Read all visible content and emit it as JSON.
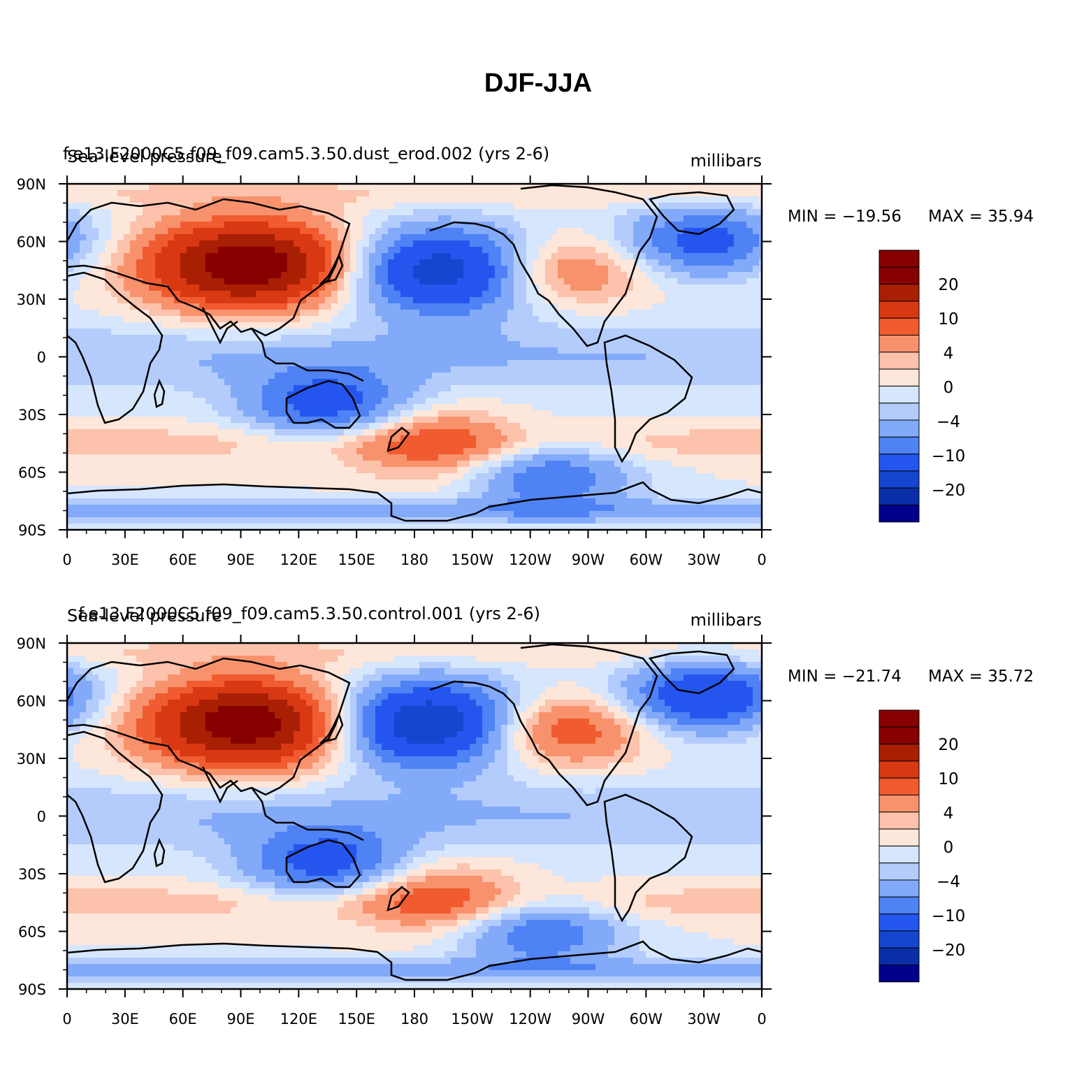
{
  "title": "DJF-JJA",
  "colors": {
    "levels": [
      "#00008b",
      "#0a2ea8",
      "#1646cf",
      "#2456ef",
      "#4e82f5",
      "#83aaf9",
      "#b3ccfb",
      "#d6e6fd",
      "#fde6da",
      "#fcc2ab",
      "#f8926c",
      "#f05b30",
      "#d83812",
      "#a81f04",
      "#860000"
    ],
    "coast": "#000000"
  },
  "colorbar_labels": [
    "20",
    "10",
    "4",
    "0",
    "−4",
    "−10",
    "−20"
  ],
  "lon_ticks": [
    "0",
    "30E",
    "60E",
    "90E",
    "120E",
    "150E",
    "180",
    "150W",
    "120W",
    "90W",
    "60W",
    "30W",
    "0"
  ],
  "lat_ticks": [
    "90N",
    "60N",
    "30N",
    "0",
    "30S",
    "60S",
    "90S"
  ],
  "panels": [
    {
      "left_label": "Sea-level pressure",
      "center_label": "f.e13.F2000C5.f09_f09.cam5.3.50.dust_erod.002 (yrs 2-6)",
      "right_label": "millibars",
      "min_text": "MIN = −19.56",
      "max_text": "MAX =   35.94"
    },
    {
      "left_label": "Sea-level pressure",
      "center_label": "f.e13.F2000C5.f09_f09.cam5.3.50.control.001 (yrs 2-6)",
      "right_label": "millibars",
      "min_text": "MIN = −21.74",
      "max_text": "MAX =   35.72"
    }
  ],
  "chart_data": {
    "type": "heatmap",
    "variable": "Sea-level pressure",
    "units": "millibars",
    "season_difference": "DJF-JJA",
    "colorbar_ticks": [
      20,
      10,
      4,
      0,
      -4,
      -10,
      -20
    ],
    "panels": [
      {
        "case": "f.e13.F2000C5.f09_f09.cam5.3.50.dust_erod.002 (yrs 2-6)",
        "min": -19.56,
        "max": 35.94,
        "lon_range": [
          0,
          360
        ],
        "lat_range": [
          -90,
          90
        ],
        "features": [
          {
            "region": "Siberia/Central Asia high",
            "lon": 95,
            "lat": 48,
            "value": 25
          },
          {
            "region": "Aleutian low",
            "lon": 195,
            "lat": 45,
            "value": -19
          },
          {
            "region": "Icelandic low",
            "lon": 330,
            "lat": 60,
            "value": -12
          },
          {
            "region": "North America high",
            "lon": 255,
            "lat": 45,
            "value": 10
          },
          {
            "region": "Australia low",
            "lon": 135,
            "lat": -25,
            "value": -12
          },
          {
            "region": "Southern Ocean high",
            "lon": 190,
            "lat": -45,
            "value": 8
          },
          {
            "region": "Amundsen low",
            "lon": 250,
            "lat": -62,
            "value": -10
          }
        ]
      },
      {
        "case": "f.e13.F2000C5.f09_f09.cam5.3.50.control.001 (yrs 2-6)",
        "min": -21.74,
        "max": 35.72,
        "lon_range": [
          0,
          360
        ],
        "lat_range": [
          -90,
          90
        ],
        "features": [
          {
            "region": "Siberia/Central Asia high",
            "lon": 95,
            "lat": 48,
            "value": 25
          },
          {
            "region": "Aleutian low",
            "lon": 185,
            "lat": 48,
            "value": -21
          },
          {
            "region": "Icelandic low",
            "lon": 330,
            "lat": 62,
            "value": -15
          },
          {
            "region": "North America high",
            "lon": 255,
            "lat": 45,
            "value": 12
          },
          {
            "region": "Australia low",
            "lon": 135,
            "lat": -25,
            "value": -12
          },
          {
            "region": "Southern Ocean high",
            "lon": 190,
            "lat": -42,
            "value": 8
          },
          {
            "region": "Amundsen low",
            "lon": 245,
            "lat": -60,
            "value": -10
          }
        ]
      }
    ]
  }
}
